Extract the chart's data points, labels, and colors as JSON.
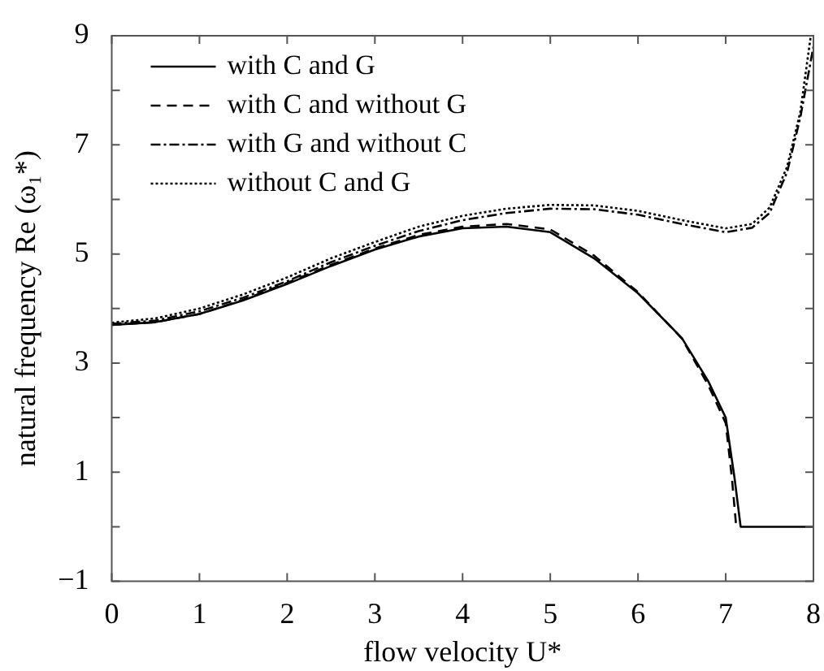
{
  "chart_data": {
    "type": "line",
    "xlabel": "flow velocity U*",
    "ylabel": "natural frequency Re (ω₁*)",
    "xlim": [
      0,
      8
    ],
    "xticks": [
      0,
      1,
      2,
      3,
      4,
      5,
      6,
      7,
      8
    ],
    "ylim": [
      -1,
      9
    ],
    "yticks": [
      -1,
      {
        "value": 0,
        "label": null
      },
      1,
      {
        "value": 2,
        "label": null
      },
      3,
      {
        "value": 4,
        "label": null
      },
      5,
      {
        "value": 6,
        "label": null
      },
      7,
      {
        "value": 8,
        "label": null
      },
      9
    ],
    "grid": false,
    "legend": "top left",
    "marker": "none",
    "series": [
      {
        "name": "with C and G",
        "color": "#000000",
        "line_style": "solid",
        "x": [
          0,
          0.5,
          1,
          1.5,
          2,
          2.5,
          3,
          3.5,
          4,
          4.5,
          5,
          5.5,
          6,
          6.5,
          6.8,
          7,
          7.1,
          7.17,
          8
        ],
        "values": [
          3.7,
          3.75,
          3.9,
          4.15,
          4.45,
          4.78,
          5.08,
          5.32,
          5.47,
          5.5,
          5.4,
          4.92,
          4.28,
          3.46,
          2.67,
          2,
          0.9,
          0,
          0
        ]
      },
      {
        "name": "with C and without G",
        "color": "#000000",
        "line_style": "dashed",
        "x": [
          0,
          0.5,
          1,
          1.5,
          2,
          2.5,
          3,
          3.5,
          4,
          4.5,
          5,
          5.5,
          6,
          6.5,
          6.8,
          7,
          7.07,
          7.12
        ],
        "values": [
          3.7,
          3.75,
          3.9,
          4.16,
          4.47,
          4.8,
          5.1,
          5.35,
          5.5,
          5.55,
          5.45,
          4.97,
          4.3,
          3.45,
          2.6,
          1.9,
          0.9,
          0
        ]
      },
      {
        "name": "with G and without C",
        "color": "#000000",
        "line_style": "dashdot",
        "x": [
          0,
          0.5,
          1,
          1.5,
          2,
          2.5,
          3,
          3.5,
          4,
          4.5,
          5,
          5.5,
          6,
          6.5,
          7,
          7.3,
          7.5,
          7.7,
          7.85,
          8
        ],
        "values": [
          3.72,
          3.78,
          3.95,
          4.2,
          4.5,
          4.85,
          5.15,
          5.42,
          5.62,
          5.75,
          5.83,
          5.82,
          5.72,
          5.55,
          5.4,
          5.48,
          5.75,
          6.5,
          7.5,
          8.8
        ]
      },
      {
        "name": "without C and G",
        "color": "#000000",
        "line_style": "dotted",
        "x": [
          0,
          0.5,
          1,
          1.5,
          2,
          2.5,
          3,
          3.5,
          4,
          4.5,
          5,
          5.5,
          6,
          6.5,
          7,
          7.3,
          7.5,
          7.7,
          7.85,
          7.97
        ],
        "values": [
          3.74,
          3.82,
          4,
          4.26,
          4.57,
          4.92,
          5.22,
          5.5,
          5.7,
          5.83,
          5.9,
          5.89,
          5.79,
          5.62,
          5.47,
          5.55,
          5.85,
          6.6,
          7.6,
          9
        ]
      }
    ]
  }
}
